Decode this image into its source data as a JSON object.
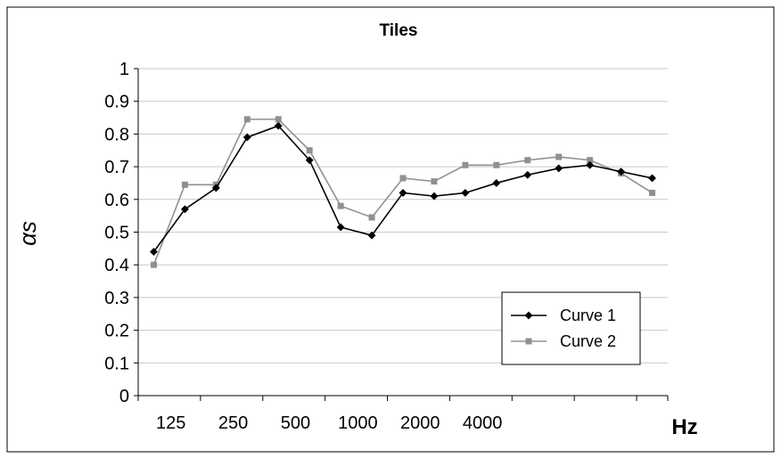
{
  "chart_data": {
    "type": "line",
    "title": "Tiles",
    "ylabel": "αs",
    "xlabel": "Hz",
    "ylim": [
      0,
      1
    ],
    "y_ticks": [
      "0",
      "0.1",
      "0.2",
      "0.3",
      "0.4",
      "0.5",
      "0.6",
      "0.7",
      "0.8",
      "0.9",
      "1"
    ],
    "x_tick_labels": [
      "125",
      "250",
      "500",
      "1000",
      "2000",
      "4000"
    ],
    "x": [
      "100",
      "125",
      "160",
      "200",
      "250",
      "315",
      "400",
      "500",
      "630",
      "800",
      "1000",
      "1250",
      "1600",
      "2000",
      "2500",
      "3150",
      "4000"
    ],
    "series": [
      {
        "name": "Curve 1",
        "color": "#000000",
        "marker": "diamond",
        "values": [
          0.44,
          0.57,
          0.635,
          0.79,
          0.825,
          0.72,
          0.515,
          0.49,
          0.62,
          0.61,
          0.62,
          0.65,
          0.675,
          0.695,
          0.705,
          0.685,
          0.665
        ]
      },
      {
        "name": "Curve 2",
        "color": "#909090",
        "marker": "square",
        "values": [
          0.4,
          0.645,
          0.645,
          0.845,
          0.845,
          0.75,
          0.58,
          0.545,
          0.665,
          0.655,
          0.705,
          0.705,
          0.72,
          0.73,
          0.72,
          0.68,
          0.62
        ]
      }
    ],
    "grid": "horizontal",
    "legend_position": "bottom-right"
  }
}
